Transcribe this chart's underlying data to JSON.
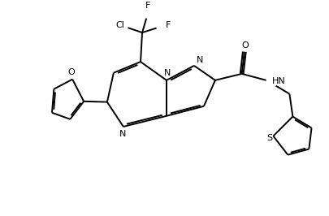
{
  "bg": "#ffffff",
  "lc": "#000000",
  "lw": 1.4,
  "fs": 8.0,
  "figsize": [
    4.06,
    2.66
  ],
  "dpi": 100,
  "xlim": [
    0.0,
    10.0
  ],
  "ylim": [
    0.5,
    7.0
  ]
}
